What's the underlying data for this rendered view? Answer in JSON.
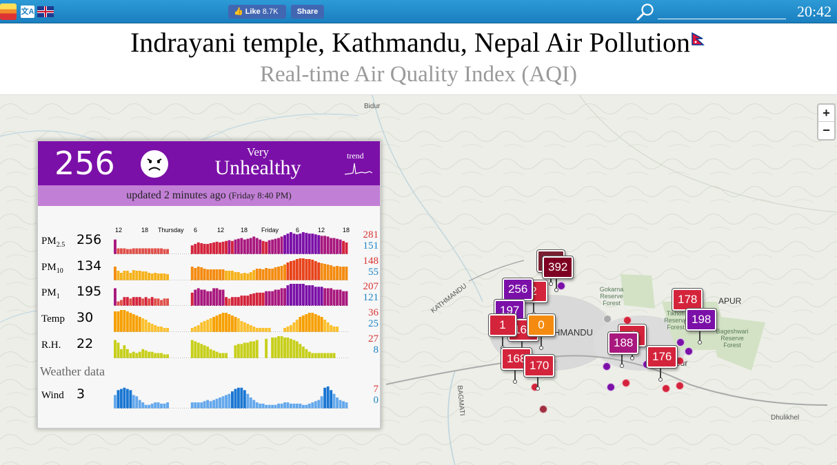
{
  "topbar": {
    "logo_icon": "aqicn-logo-icon",
    "translate_icon": "translate-icon",
    "language_icon": "uk-flag-icon",
    "like_label": "Like",
    "like_count": "8.7K",
    "share_label": "Share",
    "search_placeholder": "",
    "time": "20:42"
  },
  "title": "Indrayani temple, Kathmandu, Nepal Air Pollution",
  "subtitle": "Real-time Air Quality Index (AQI)",
  "panel": {
    "aqi": "256",
    "level_line1": "Very",
    "level_line2": "Unhealthy",
    "level_color": "#7b10a8",
    "trend_label": "trend",
    "updated": "updated 2 minutes ago",
    "updated_time": "(Friday 8:40 PM)",
    "time_ticks": [
      "12",
      "18",
      "Thursday",
      "6",
      "12",
      "18",
      "Friday",
      "6",
      "12",
      "18"
    ],
    "weather_title": "Weather data",
    "rows": [
      {
        "name": "PM",
        "sub": "2.5",
        "current": "256",
        "max": "281",
        "min": "151",
        "kind": "aqi",
        "values": [
          20,
          8,
          8,
          8,
          7,
          7,
          8,
          8,
          8,
          8,
          8,
          8,
          8,
          8,
          8,
          8,
          7,
          7,
          0,
          0,
          0,
          0,
          0,
          0,
          0,
          12,
          14,
          16,
          15,
          14,
          14,
          15,
          16,
          17,
          16,
          17,
          18,
          19,
          18,
          20,
          21,
          22,
          20,
          21,
          22,
          24,
          22,
          20,
          18,
          17,
          19,
          20,
          21,
          22,
          24,
          26,
          28,
          30,
          28,
          27,
          28,
          30,
          29,
          28,
          28,
          27,
          26,
          25,
          25,
          24,
          22,
          22,
          21,
          20,
          18,
          16
        ]
      },
      {
        "name": "PM",
        "sub": "10",
        "current": "134",
        "max": "148",
        "min": "55",
        "kind": "aqi",
        "values": [
          20,
          14,
          11,
          14,
          14,
          11,
          15,
          14,
          14,
          13,
          13,
          11,
          10,
          11,
          10,
          10,
          10,
          9,
          0,
          0,
          0,
          0,
          0,
          0,
          0,
          20,
          18,
          20,
          19,
          17,
          16,
          16,
          16,
          16,
          16,
          16,
          14,
          14,
          14,
          12,
          12,
          10,
          11,
          10,
          12,
          15,
          17,
          17,
          16,
          18,
          17,
          17,
          19,
          20,
          21,
          23,
          26,
          28,
          29,
          31,
          32,
          32,
          31,
          31,
          30,
          28,
          26,
          25,
          24,
          23,
          22,
          20,
          21,
          20,
          20,
          20
        ]
      },
      {
        "name": "PM",
        "sub": "1",
        "current": "195",
        "max": "207",
        "min": "121",
        "kind": "aqi",
        "values": [
          24,
          6,
          8,
          12,
          12,
          10,
          12,
          12,
          12,
          10,
          12,
          10,
          12,
          10,
          10,
          8,
          10,
          10,
          0,
          0,
          0,
          0,
          0,
          0,
          0,
          18,
          22,
          24,
          22,
          22,
          20,
          20,
          24,
          24,
          22,
          22,
          12,
          10,
          12,
          12,
          12,
          14,
          14,
          14,
          16,
          17,
          18,
          18,
          18,
          20,
          20,
          20,
          22,
          22,
          24,
          24,
          28,
          30,
          30,
          30,
          30,
          30,
          28,
          28,
          28,
          26,
          26,
          26,
          24,
          24,
          24,
          22,
          22,
          22,
          20,
          20
        ]
      },
      {
        "name": "Temp",
        "sub": "",
        "current": "30",
        "max": "36",
        "min": "25",
        "kind": "temp",
        "values": [
          30,
          30,
          32,
          32,
          30,
          28,
          26,
          24,
          22,
          20,
          18,
          14,
          12,
          10,
          8,
          8,
          6,
          6,
          0,
          0,
          0,
          0,
          0,
          0,
          0,
          6,
          8,
          10,
          14,
          16,
          18,
          20,
          22,
          24,
          26,
          28,
          28,
          26,
          24,
          22,
          20,
          16,
          14,
          12,
          10,
          8,
          6,
          6,
          6,
          6,
          6,
          0,
          0,
          0,
          0,
          6,
          8,
          10,
          14,
          18,
          22,
          24,
          26,
          28,
          28,
          26,
          24,
          22,
          18,
          14,
          10,
          8,
          8,
          0,
          0,
          0
        ]
      },
      {
        "name": "R.H.",
        "sub": "",
        "current": "22",
        "max": "27",
        "min": "8",
        "kind": "rh",
        "values": [
          28,
          24,
          14,
          20,
          14,
          8,
          10,
          8,
          10,
          14,
          12,
          10,
          10,
          8,
          8,
          8,
          6,
          6,
          0,
          0,
          0,
          0,
          0,
          0,
          0,
          28,
          26,
          24,
          22,
          20,
          18,
          14,
          12,
          10,
          8,
          8,
          8,
          0,
          0,
          20,
          22,
          22,
          24,
          24,
          26,
          26,
          28,
          0,
          0,
          30,
          0,
          32,
          32,
          34,
          34,
          32,
          32,
          30,
          28,
          26,
          22,
          18,
          14,
          10,
          8,
          8,
          8,
          8,
          8,
          8,
          8,
          8,
          0,
          0,
          0,
          0
        ]
      }
    ],
    "wind": {
      "name": "Wind",
      "current": "3",
      "max": "7",
      "min": "0",
      "values": [
        22,
        30,
        32,
        34,
        32,
        30,
        22,
        20,
        14,
        10,
        6,
        6,
        8,
        10,
        10,
        8,
        8,
        10,
        0,
        0,
        0,
        0,
        0,
        0,
        0,
        10,
        10,
        10,
        10,
        12,
        14,
        12,
        14,
        16,
        18,
        20,
        22,
        24,
        28,
        32,
        34,
        34,
        30,
        24,
        18,
        14,
        10,
        8,
        8,
        6,
        6,
        6,
        6,
        8,
        8,
        10,
        10,
        8,
        8,
        8,
        8,
        6,
        6,
        8,
        10,
        12,
        14,
        20,
        34,
        36,
        30,
        24,
        18,
        14,
        12,
        10
      ]
    }
  },
  "map": {
    "labels": [
      "Bidur",
      "KATHMANDU",
      "THMANDU",
      "Gokarna Reserve Forest",
      "Tikhoti Reserve Forest",
      "Bageshwari Reserve Forest",
      "BAGMATI",
      "Dhulikhel",
      "APUR",
      "pur",
      "r"
    ],
    "zoom_in": "+",
    "zoom_out": "−",
    "markers": [
      {
        "value": "",
        "color": "#7a1f31"
      },
      {
        "value": "392",
        "color": "#7e0023"
      },
      {
        "value": "2",
        "color": "#d4243c"
      },
      {
        "value": "256",
        "color": "#7b10a8"
      },
      {
        "value": "197",
        "color": "#7b10a8"
      },
      {
        "value": "160",
        "color": "#d4243c"
      },
      {
        "value": "1",
        "color": "#d4243c"
      },
      {
        "value": "0",
        "color": "#f48b10"
      },
      {
        "value": "168",
        "color": "#d4243c"
      },
      {
        "value": "170",
        "color": "#d4243c"
      },
      {
        "value": "178",
        "color": "#d4243c"
      },
      {
        "value": "198",
        "color": "#7b10a8"
      },
      {
        "value": "4",
        "color": "#d4243c"
      },
      {
        "value": "188",
        "color": "#a8187e"
      },
      {
        "value": "176",
        "color": "#d4243c"
      }
    ]
  }
}
